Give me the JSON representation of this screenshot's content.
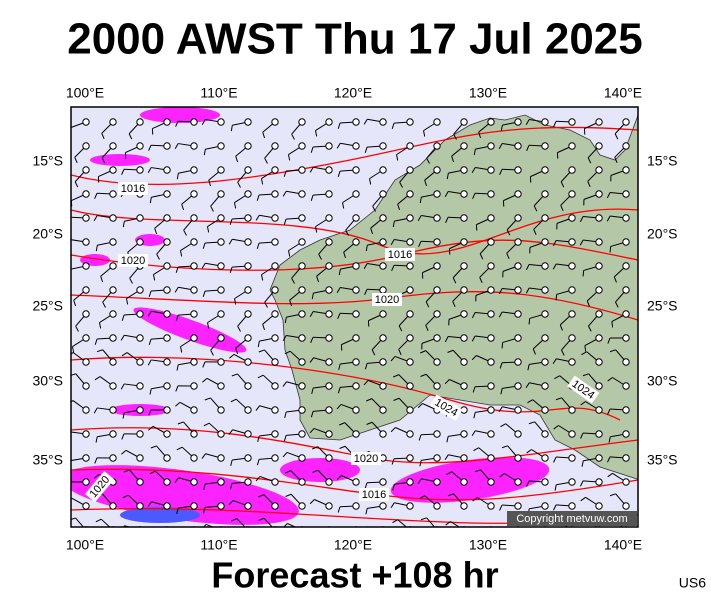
{
  "header": {
    "title": "2000 AWST Thu 17 Jul 2025"
  },
  "map": {
    "lon_labels": [
      "100°E",
      "110°E",
      "120°E",
      "130°E",
      "140°E"
    ],
    "lat_labels": [
      "15°S",
      "20°S",
      "25°S",
      "30°S",
      "35°S"
    ],
    "isobar_labels": [
      "1016",
      "1020",
      "1016",
      "1020",
      "1024",
      "1024",
      "1020",
      "1016",
      "1020"
    ],
    "copyright": "Copyright metvuw.com"
  },
  "footer": {
    "forecast": "Forecast +108 hr",
    "code": "US6"
  }
}
